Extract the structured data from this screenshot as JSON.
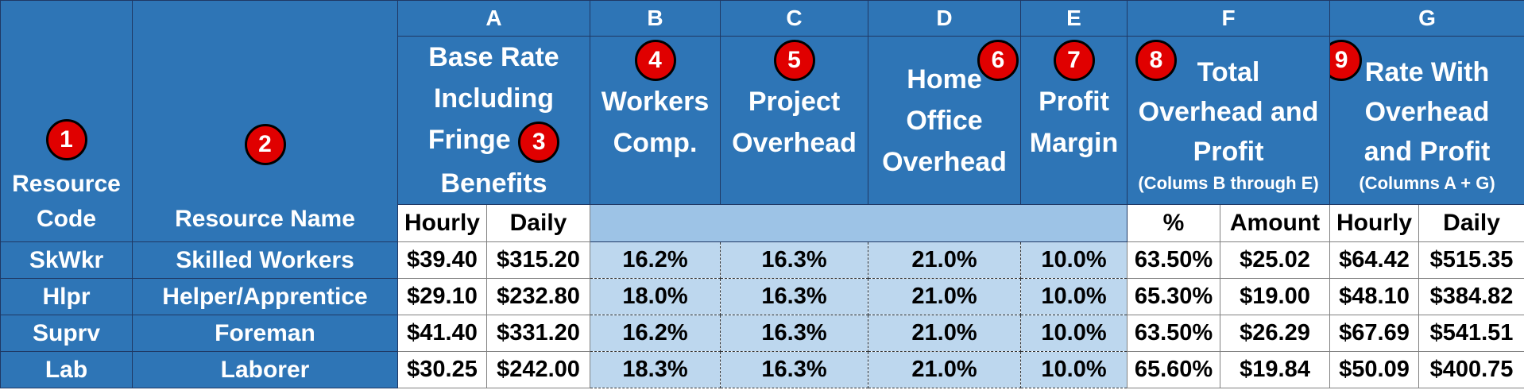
{
  "letters": [
    "A",
    "B",
    "C",
    "D",
    "E",
    "F",
    "G"
  ],
  "badges": [
    "1",
    "2",
    "3",
    "4",
    "5",
    "6",
    "7",
    "8",
    "9"
  ],
  "headers": {
    "code": [
      "Resource",
      "Code"
    ],
    "name": "Resource Name",
    "a": [
      "Base Rate",
      "Including",
      "Fringe",
      "Benefits"
    ],
    "b": [
      "Workers",
      "Comp."
    ],
    "c": [
      "Project",
      "Overhead"
    ],
    "d": [
      "Home",
      "Office",
      "Overhead"
    ],
    "e": [
      "Profit",
      "Margin"
    ],
    "f": [
      "Total",
      "Overhead and",
      "Profit",
      "(Colums B through E)"
    ],
    "g": [
      "Rate With",
      "Overhead",
      "and Profit",
      "(Columns A + G)"
    ]
  },
  "subheaders": {
    "a_hourly": "Hourly",
    "a_daily": "Daily",
    "f_pct": "%",
    "f_amount": "Amount",
    "g_hourly": "Hourly",
    "g_daily": "Daily"
  },
  "rows": [
    {
      "code": "SkWkr",
      "name": "Skilled Workers",
      "hourly": "$39.40",
      "daily": "$315.20",
      "wc": "16.2%",
      "po": "16.3%",
      "ho": "21.0%",
      "pm": "10.0%",
      "pct": "63.50%",
      "amt": "$25.02",
      "ghourly": "$64.42",
      "gdaily": "$515.35"
    },
    {
      "code": "Hlpr",
      "name": "Helper/Apprentice",
      "hourly": "$29.10",
      "daily": "$232.80",
      "wc": "18.0%",
      "po": "16.3%",
      "ho": "21.0%",
      "pm": "10.0%",
      "pct": "65.30%",
      "amt": "$19.00",
      "ghourly": "$48.10",
      "gdaily": "$384.82"
    },
    {
      "code": "Suprv",
      "name": "Foreman",
      "hourly": "$41.40",
      "daily": "$331.20",
      "wc": "16.2%",
      "po": "16.3%",
      "ho": "21.0%",
      "pm": "10.0%",
      "pct": "63.50%",
      "amt": "$26.29",
      "ghourly": "$67.69",
      "gdaily": "$541.51"
    },
    {
      "code": "Lab",
      "name": "Laborer",
      "hourly": "$30.25",
      "daily": "$242.00",
      "wc": "18.3%",
      "po": "16.3%",
      "ho": "21.0%",
      "pm": "10.0%",
      "pct": "65.60%",
      "amt": "$19.84",
      "ghourly": "$50.09",
      "gdaily": "$400.75"
    }
  ],
  "colors": {
    "header_blue": "#2e75b6",
    "light_blue": "#bdd7ee",
    "mid_blue": "#9dc3e6",
    "badge_red": "#e00000"
  }
}
